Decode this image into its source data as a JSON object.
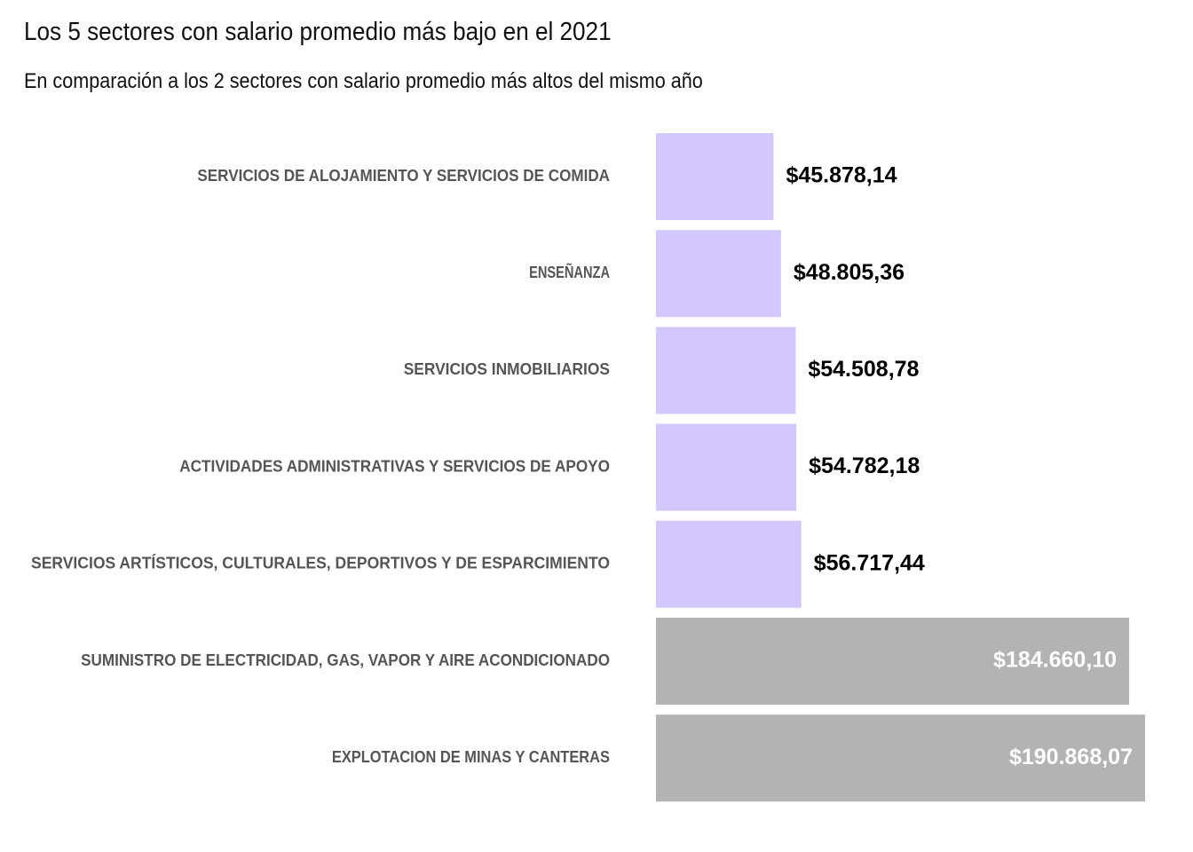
{
  "chart_data": {
    "type": "bar",
    "orientation": "horizontal",
    "title": "Los 5 sectores con salario promedio más bajo en el 2021",
    "subtitle": "En comparación a los 2 sectores con salario promedio más altos del mismo año",
    "categories": [
      "SERVICIOS DE ALOJAMIENTO Y SERVICIOS DE COMIDA",
      "ENSEÑANZA",
      "SERVICIOS INMOBILIARIOS",
      "ACTIVIDADES ADMINISTRATIVAS Y SERVICIOS DE APOYO",
      "SERVICIOS  ARTÍSTICOS, CULTURALES, DEPORTIVOS  Y DE ESPARCIMIENTO",
      "SUMINISTRO DE ELECTRICIDAD, GAS, VAPOR Y AIRE ACONDICIONADO",
      "EXPLOTACION DE MINAS Y CANTERAS"
    ],
    "values": [
      45878.14,
      48805.36,
      54508.78,
      54782.18,
      56717.44,
      184660.1,
      190868.07
    ],
    "value_labels": [
      "$45.878,14",
      "$48.805,36",
      "$54.508,78",
      "$54.782,18",
      "$56.717,44",
      "$184.660,10",
      "$190.868,07"
    ],
    "groups": [
      "low",
      "low",
      "low",
      "low",
      "low",
      "high",
      "high"
    ],
    "colors": {
      "low": "#d4c7fe",
      "high": "#b3b3b3"
    },
    "xlim": [
      0,
      190868.07
    ],
    "grid": false,
    "legend": "none"
  }
}
